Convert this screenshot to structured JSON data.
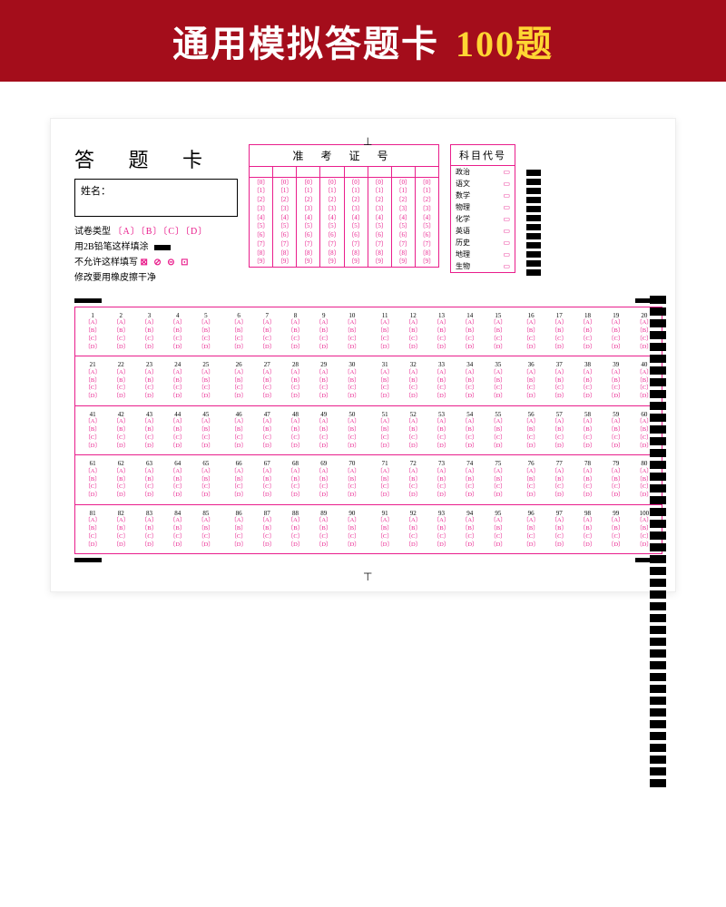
{
  "banner": {
    "text_left": "通用模拟答题卡",
    "text_right": "100题",
    "bg": "#a40d1b",
    "left_color": "#ffffff",
    "right_color": "#ffd633"
  },
  "sheet": {
    "title": "答 题 卡",
    "name_label": "姓名：",
    "paper_type_label": "试卷类型",
    "paper_type_opts": "〔A〕〔B〕〔C〕〔D〕",
    "inst_fill": "用2B铅笔这样填涂",
    "inst_wrong_label": "不允许这样填写",
    "inst_wrong_marks": "⊠ ⊘ ⊝ ⊡",
    "inst_erase": "修改要用橡皮擦干净",
    "exam_no_title": "准 考 证 号",
    "exam_no_cols": 8,
    "exam_no_digits": [
      "〔0〕",
      "〔1〕",
      "〔2〕",
      "〔3〕",
      "〔4〕",
      "〔5〕",
      "〔6〕",
      "〔7〕",
      "〔8〕",
      "〔9〕"
    ],
    "subject_title": "科目代号",
    "subjects": [
      "政治",
      "语文",
      "数学",
      "物理",
      "化学",
      "英语",
      "历史",
      "地理",
      "生物"
    ],
    "subject_bubble": "▭",
    "answer_rows": 5,
    "groups_per_row": 4,
    "questions_per_group": 5,
    "total_questions": 100,
    "options": [
      "〔A〕",
      "〔B〕",
      "〔C〕",
      "〔D〕"
    ],
    "colors": {
      "pink": "#e91e8c",
      "black": "#000000"
    },
    "right_timing_count": 42,
    "side_timing_count": 12
  }
}
